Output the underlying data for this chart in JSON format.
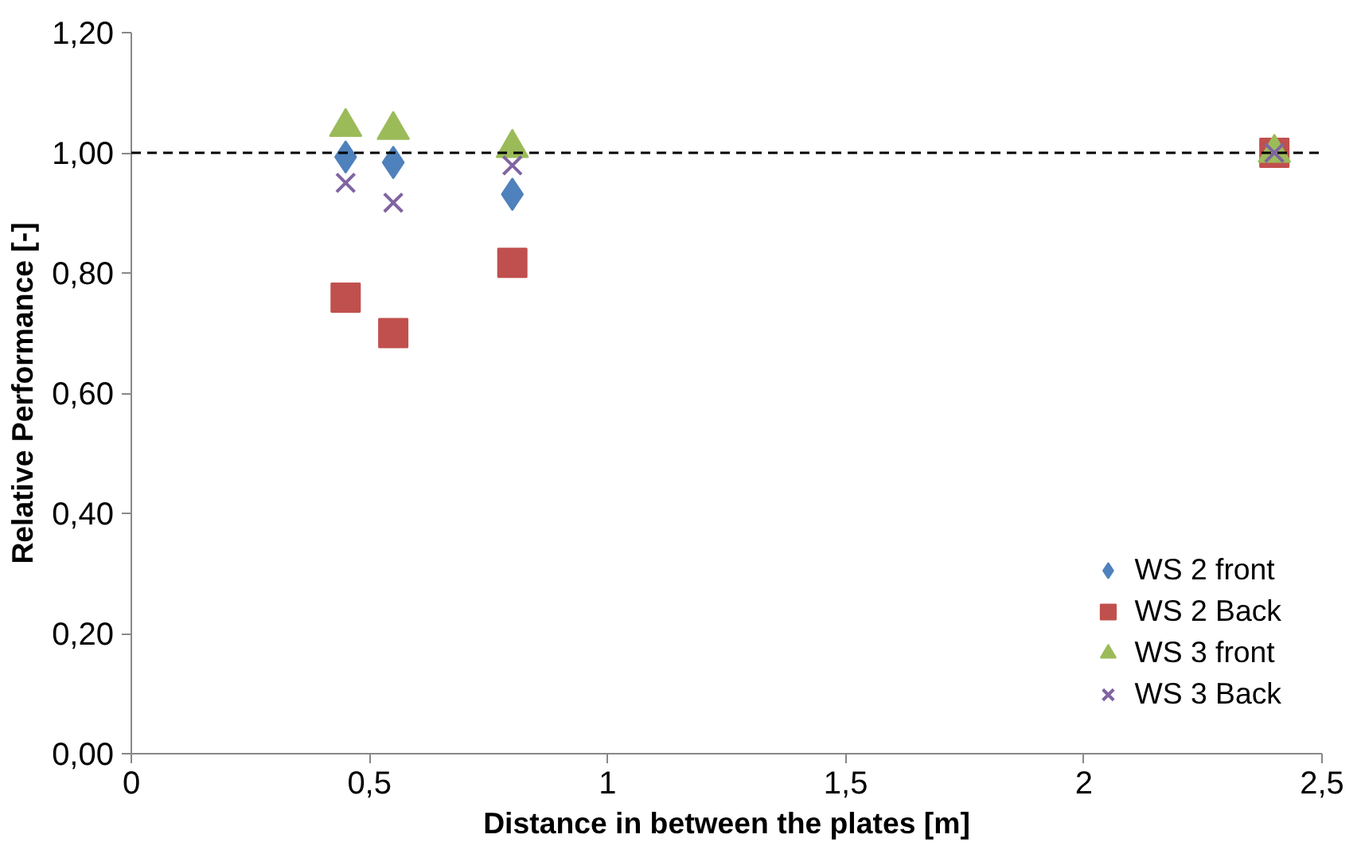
{
  "chart_data": {
    "type": "scatter",
    "xlabel": "Distance in between the plates [m]",
    "ylabel": "Relative Performance [-]",
    "xlim": [
      0,
      2.5
    ],
    "ylim": [
      0,
      1.2
    ],
    "xticks": [
      0,
      {
        "value": 0.5,
        "label": "0,5"
      },
      1,
      {
        "value": 1.5,
        "label": "1,5"
      },
      2,
      {
        "value": 2.5,
        "label": "2,5"
      }
    ],
    "yticks": [
      {
        "value": 0,
        "label": "0,00"
      },
      {
        "value": 0.2,
        "label": "0,20"
      },
      {
        "value": 0.4,
        "label": "0,40"
      },
      {
        "value": 0.6,
        "label": "0,60"
      },
      {
        "value": 0.8,
        "label": "0,80"
      },
      {
        "value": 1.0,
        "label": "1,00"
      },
      {
        "value": 1.2,
        "label": "1,20"
      }
    ],
    "grid": false,
    "legend": "bottom right",
    "ref_lines": [
      {
        "axis": "y",
        "value": 1.0,
        "label": null,
        "color": "#000000",
        "line_style": "dashed"
      }
    ],
    "x": [
      0.45,
      0.55,
      0.8,
      2.4
    ],
    "series": [
      {
        "name": "WS 2 front",
        "color": "#4f81bd",
        "marker": "diamond",
        "values": [
          0.993,
          0.984,
          0.931,
          null
        ]
      },
      {
        "name": "WS 2 Back",
        "color": "#c0504d",
        "marker": "square",
        "values": [
          0.759,
          0.7,
          0.817,
          1.0
        ]
      },
      {
        "name": "WS 3 front",
        "color": "#9bbb59",
        "marker": "triangle",
        "values": [
          1.043,
          1.038,
          1.008,
          1.0
        ]
      },
      {
        "name": "WS 3 Back",
        "color": "#8064a2",
        "marker": "cross",
        "values": [
          0.95,
          0.917,
          0.979,
          1.0
        ]
      }
    ]
  }
}
